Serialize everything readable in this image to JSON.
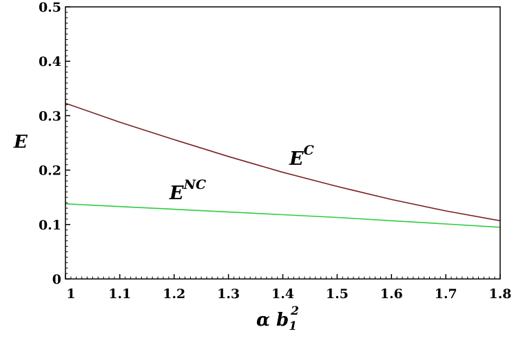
{
  "chart_data": {
    "type": "line",
    "title": "",
    "xlabel": {
      "base": "α b",
      "sub": "1",
      "sup": "2"
    },
    "ylabel": "E",
    "xlim": [
      1,
      1.8
    ],
    "ylim": [
      0,
      0.5
    ],
    "grid": false,
    "x_ticks": [
      "1",
      "1.1",
      "1.2",
      "1.3",
      "1.4",
      "1.5",
      "1.6",
      "1.7",
      "1.8"
    ],
    "y_ticks": [
      "0",
      "0.1",
      "0.2",
      "0.3",
      "0.4",
      "0.5"
    ],
    "series": [
      {
        "name": "E^C",
        "label_base": "E",
        "label_sup": "C",
        "color": "#7a1f1f",
        "x": [
          1.0,
          1.1,
          1.2,
          1.3,
          1.4,
          1.5,
          1.6,
          1.7,
          1.8
        ],
        "y": [
          0.323,
          0.288,
          0.256,
          0.225,
          0.196,
          0.17,
          0.146,
          0.125,
          0.107
        ]
      },
      {
        "name": "E^NC",
        "label_base": "E",
        "label_sup": "NC",
        "color": "#2ecc40",
        "x": [
          1.0,
          1.1,
          1.2,
          1.3,
          1.4,
          1.5,
          1.6,
          1.7,
          1.8
        ],
        "y": [
          0.138,
          0.133,
          0.128,
          0.123,
          0.118,
          0.113,
          0.107,
          0.101,
          0.095
        ]
      }
    ]
  }
}
